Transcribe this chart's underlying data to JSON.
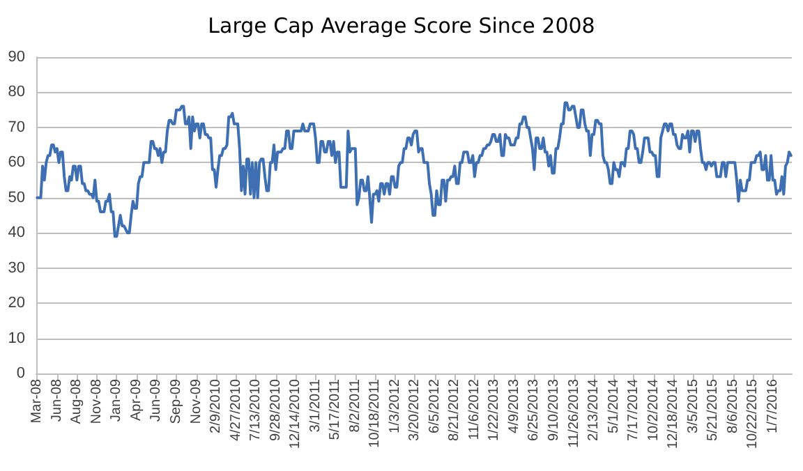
{
  "chart_data": {
    "type": "line",
    "title": "Large Cap Average Score Since 2008",
    "categories": [
      "Mar-08",
      null,
      null,
      null,
      null,
      null,
      null,
      null,
      null,
      null,
      null,
      "Jun-08",
      null,
      null,
      null,
      null,
      null,
      null,
      null,
      null,
      null,
      null,
      "Aug-08",
      null,
      null,
      null,
      null,
      null,
      null,
      null,
      null,
      null,
      null,
      "Nov-08",
      null,
      null,
      null,
      null,
      null,
      null,
      null,
      null,
      null,
      null,
      "Jan-09",
      null,
      null,
      null,
      null,
      null,
      null,
      null,
      null,
      null,
      null,
      "Apr-09",
      null,
      null,
      null,
      null,
      null,
      null,
      null,
      null,
      null,
      null,
      "Jun-09",
      null,
      null,
      null,
      null,
      null,
      null,
      null,
      null,
      null,
      null,
      "Sep-09",
      null,
      null,
      null,
      null,
      null,
      null,
      null,
      null,
      null,
      null,
      "Nov-09",
      null,
      null,
      null,
      null,
      null,
      null,
      null,
      null,
      null,
      null,
      "2/9/2010",
      null,
      null,
      null,
      null,
      null,
      null,
      null,
      null,
      null,
      null,
      "4/27/2010",
      null,
      null,
      null,
      null,
      null,
      null,
      null,
      null,
      null,
      null,
      "7/13/2010",
      null,
      null,
      null,
      null,
      null,
      null,
      null,
      null,
      null,
      null,
      "9/28/2010",
      null,
      null,
      null,
      null,
      null,
      null,
      null,
      null,
      null,
      null,
      "12/14/2010",
      null,
      null,
      null,
      null,
      null,
      null,
      null,
      null,
      null,
      null,
      "3/1/2011",
      null,
      null,
      null,
      null,
      null,
      null,
      null,
      null,
      null,
      null,
      "5/17/2011",
      null,
      null,
      null,
      null,
      null,
      null,
      null,
      null,
      null,
      null,
      "8/2/2011",
      null,
      null,
      null,
      null,
      null,
      null,
      null,
      null,
      null,
      null,
      "10/18/2011",
      null,
      null,
      null,
      null,
      null,
      null,
      null,
      null,
      null,
      null,
      "1/3/2012",
      null,
      null,
      null,
      null,
      null,
      null,
      null,
      null,
      null,
      null,
      "3/20/2012",
      null,
      null,
      null,
      null,
      null,
      null,
      null,
      null,
      null,
      null,
      "6/5/2012",
      null,
      null,
      null,
      null,
      null,
      null,
      null,
      null,
      null,
      null,
      "8/21/2012",
      null,
      null,
      null,
      null,
      null,
      null,
      null,
      null,
      null,
      null,
      "11/6/2012",
      null,
      null,
      null,
      null,
      null,
      null,
      null,
      null,
      null,
      null,
      "1/22/2013",
      null,
      null,
      null,
      null,
      null,
      null,
      null,
      null,
      null,
      null,
      "4/9/2013",
      null,
      null,
      null,
      null,
      null,
      null,
      null,
      null,
      null,
      null,
      "6/25/2013",
      null,
      null,
      null,
      null,
      null,
      null,
      null,
      null,
      null,
      null,
      "9/10/2013",
      null,
      null,
      null,
      null,
      null,
      null,
      null,
      null,
      null,
      null,
      "11/26/2013",
      null,
      null,
      null,
      null,
      null,
      null,
      null,
      null,
      null,
      null,
      "2/13/2014",
      null,
      null,
      null,
      null,
      null,
      null,
      null,
      null,
      null,
      null,
      "5/1/2014",
      null,
      null,
      null,
      null,
      null,
      null,
      null,
      null,
      null,
      null,
      "7/17/2014",
      null,
      null,
      null,
      null,
      null,
      null,
      null,
      null,
      null,
      null,
      "10/2/2014",
      null,
      null,
      null,
      null,
      null,
      null,
      null,
      null,
      null,
      null,
      "12/18/2014",
      null,
      null,
      null,
      null,
      null,
      null,
      null,
      null,
      null,
      null,
      "3/5/2015",
      null,
      null,
      null,
      null,
      null,
      null,
      null,
      null,
      null,
      null,
      "5/21/2015",
      null,
      null,
      null,
      null,
      null,
      null,
      null,
      null,
      null,
      null,
      "8/6/2015",
      null,
      null,
      null,
      null,
      null,
      null,
      null,
      null,
      null,
      null,
      "10/22/2015",
      null,
      null,
      null,
      null,
      null,
      null,
      null,
      null,
      null,
      null,
      "1/7/2016",
      null,
      null,
      null,
      null,
      null,
      null,
      null,
      null,
      null,
      null
    ],
    "ylim": [
      0,
      90
    ],
    "yticks": [
      0,
      10,
      20,
      30,
      40,
      50,
      60,
      70,
      80,
      90
    ],
    "grid": "y",
    "marker": "none",
    "line_style": "solid",
    "series": [
      {
        "color": "#3e6fb3",
        "values": [
          50,
          50,
          50,
          59,
          55,
          60,
          62,
          62,
          65,
          65,
          63,
          64,
          60,
          63,
          63,
          56,
          52,
          52,
          56,
          55,
          59,
          59,
          55,
          59,
          59,
          54,
          54,
          52,
          52,
          51,
          51,
          50,
          55,
          49,
          49,
          46,
          46,
          46,
          49,
          49,
          51,
          46,
          46,
          39,
          39,
          42,
          45,
          42,
          42,
          41,
          40,
          40,
          45,
          49,
          47,
          47,
          54,
          56,
          56,
          60,
          60,
          60,
          60,
          66,
          66,
          64,
          64,
          62,
          64,
          60,
          63,
          63,
          69,
          72,
          72,
          71,
          71,
          75,
          75,
          75,
          76,
          76,
          71,
          71,
          73,
          64,
          73,
          69,
          71,
          71,
          67,
          71,
          71,
          68,
          68,
          67,
          67,
          58,
          58,
          53,
          58,
          62,
          62,
          64,
          64,
          65,
          73,
          73,
          74,
          71,
          71,
          71,
          64,
          52,
          59,
          51,
          61,
          61,
          51,
          60,
          50,
          60,
          50,
          60,
          61,
          61,
          56,
          52,
          52,
          60,
          60,
          65,
          58,
          63,
          63,
          63,
          64,
          64,
          69,
          69,
          64,
          64,
          69,
          69,
          69,
          69,
          69,
          71,
          69,
          69,
          69,
          71,
          71,
          71,
          67,
          60,
          60,
          66,
          66,
          63,
          63,
          66,
          66,
          62,
          66,
          60,
          63,
          63,
          53,
          53,
          53,
          53,
          69,
          63,
          64,
          64,
          64,
          48,
          50,
          55,
          55,
          52,
          52,
          56,
          50,
          43,
          51,
          51,
          52,
          49,
          54,
          54,
          51,
          54,
          54,
          51,
          56,
          56,
          53,
          53,
          59,
          60,
          60,
          64,
          64,
          67,
          67,
          65,
          68,
          69,
          69,
          63,
          64,
          64,
          60,
          60,
          60,
          54,
          51,
          45,
          45,
          52,
          48,
          48,
          55,
          55,
          49,
          55,
          55,
          56,
          56,
          59,
          54,
          54,
          60,
          60,
          63,
          63,
          63,
          60,
          60,
          62,
          56,
          60,
          60,
          62,
          62,
          64,
          64,
          65,
          65,
          66,
          68,
          68,
          66,
          66,
          68,
          62,
          62,
          68,
          67,
          67,
          65,
          65,
          65,
          67,
          67,
          71,
          71,
          73,
          73,
          70,
          70,
          67,
          64,
          58,
          67,
          67,
          64,
          64,
          67,
          63,
          63,
          59,
          62,
          57,
          57,
          64,
          64,
          67,
          71,
          71,
          77,
          77,
          75,
          75,
          76,
          76,
          73,
          70,
          70,
          75,
          75,
          71,
          69,
          69,
          62,
          68,
          68,
          72,
          72,
          71,
          71,
          62,
          60,
          60,
          58,
          54,
          54,
          60,
          58,
          58,
          56,
          60,
          60,
          59,
          64,
          64,
          69,
          69,
          68,
          64,
          64,
          60,
          60,
          63,
          67,
          67,
          67,
          63,
          63,
          62,
          62,
          56,
          56,
          67,
          69,
          71,
          71,
          69,
          71,
          71,
          68,
          68,
          65,
          64,
          64,
          68,
          67,
          67,
          69,
          63,
          69,
          69,
          66,
          69,
          69,
          64,
          60,
          60,
          58,
          60,
          60,
          59,
          60,
          60,
          56,
          56,
          56,
          60,
          60,
          56,
          60,
          60,
          60,
          60,
          60,
          55,
          49,
          55,
          52,
          52,
          52,
          55,
          55,
          60,
          60,
          60,
          62,
          62,
          63,
          58,
          58,
          62,
          55,
          55,
          62,
          55,
          55,
          51,
          52,
          52,
          56,
          51,
          59,
          60,
          63,
          62
        ]
      }
    ]
  }
}
